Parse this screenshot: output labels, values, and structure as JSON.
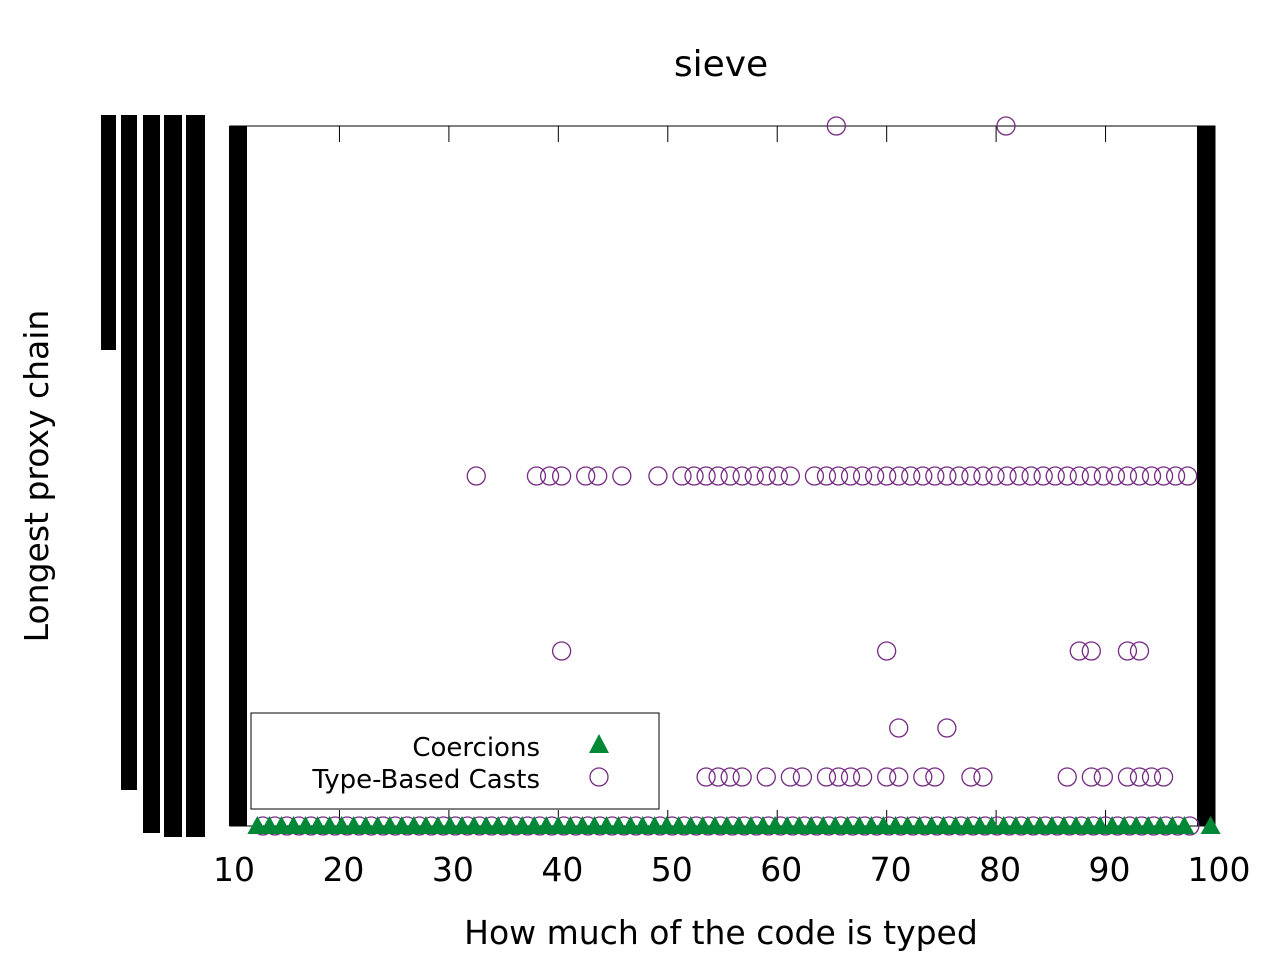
{
  "chart_data": {
    "type": "scatter",
    "title": "sieve",
    "xlabel": "How much of the code is typed",
    "ylabel": "Longest proxy chain",
    "xlim": [
      10,
      100
    ],
    "ylim": [
      0,
      20
    ],
    "x_ticks": [
      "10",
      "20",
      "30",
      "40",
      "50",
      "60",
      "70",
      "80",
      "90",
      "100"
    ],
    "legend_position": "bottom-left",
    "grid": false,
    "series": [
      {
        "name": "Coercions",
        "marker": "filled-triangle",
        "color": "#008837",
        "points": [
          [
            12.5,
            0
          ],
          [
            13.6,
            0
          ],
          [
            14.7,
            0
          ],
          [
            15.8,
            0
          ],
          [
            16.9,
            0
          ],
          [
            18.0,
            0
          ],
          [
            19.1,
            0
          ],
          [
            20.2,
            0
          ],
          [
            21.3,
            0
          ],
          [
            22.4,
            0
          ],
          [
            23.5,
            0
          ],
          [
            24.6,
            0
          ],
          [
            25.7,
            0
          ],
          [
            26.8,
            0
          ],
          [
            27.9,
            0
          ],
          [
            29.0,
            0
          ],
          [
            30.1,
            0
          ],
          [
            31.2,
            0
          ],
          [
            32.3,
            0
          ],
          [
            33.4,
            0
          ],
          [
            34.5,
            0
          ],
          [
            35.6,
            0
          ],
          [
            36.7,
            0
          ],
          [
            37.8,
            0
          ],
          [
            38.9,
            0
          ],
          [
            40.0,
            0
          ],
          [
            41.1,
            0
          ],
          [
            42.2,
            0
          ],
          [
            43.3,
            0
          ],
          [
            44.4,
            0
          ],
          [
            45.5,
            0
          ],
          [
            46.6,
            0
          ],
          [
            47.7,
            0
          ],
          [
            48.8,
            0
          ],
          [
            49.9,
            0
          ],
          [
            51.0,
            0
          ],
          [
            52.1,
            0
          ],
          [
            53.2,
            0
          ],
          [
            54.3,
            0
          ],
          [
            55.4,
            0
          ],
          [
            56.5,
            0
          ],
          [
            57.6,
            0
          ],
          [
            58.7,
            0
          ],
          [
            59.8,
            0
          ],
          [
            60.9,
            0
          ],
          [
            62.0,
            0
          ],
          [
            63.1,
            0
          ],
          [
            64.2,
            0
          ],
          [
            65.3,
            0
          ],
          [
            66.4,
            0
          ],
          [
            67.5,
            0
          ],
          [
            68.6,
            0
          ],
          [
            69.7,
            0
          ],
          [
            70.8,
            0
          ],
          [
            71.9,
            0
          ],
          [
            73.0,
            0
          ],
          [
            74.1,
            0
          ],
          [
            75.2,
            0
          ],
          [
            76.3,
            0
          ],
          [
            77.4,
            0
          ],
          [
            78.5,
            0
          ],
          [
            79.6,
            0
          ],
          [
            80.7,
            0
          ],
          [
            81.8,
            0
          ],
          [
            82.9,
            0
          ],
          [
            84.0,
            0
          ],
          [
            85.1,
            0
          ],
          [
            86.2,
            0
          ],
          [
            87.3,
            0
          ],
          [
            88.4,
            0
          ],
          [
            89.5,
            0
          ],
          [
            90.6,
            0
          ],
          [
            91.7,
            0
          ],
          [
            92.8,
            0
          ],
          [
            93.9,
            0
          ],
          [
            95.0,
            0
          ],
          [
            96.1,
            0
          ],
          [
            97.2,
            0
          ],
          [
            99.6,
            0
          ]
        ]
      },
      {
        "name": "Type-Based Casts",
        "marker": "open-circle",
        "color": "#762a83",
        "points": [
          [
            65.4,
            20
          ],
          [
            80.9,
            20
          ],
          [
            32.5,
            10
          ],
          [
            38.0,
            10
          ],
          [
            39.2,
            10
          ],
          [
            40.3,
            10
          ],
          [
            42.5,
            10
          ],
          [
            43.6,
            10
          ],
          [
            45.8,
            10
          ],
          [
            49.1,
            10
          ],
          [
            51.3,
            10
          ],
          [
            52.4,
            10
          ],
          [
            53.5,
            10
          ],
          [
            54.6,
            10
          ],
          [
            55.7,
            10
          ],
          [
            56.8,
            10
          ],
          [
            57.9,
            10
          ],
          [
            59.0,
            10
          ],
          [
            60.1,
            10
          ],
          [
            61.2,
            10
          ],
          [
            63.4,
            10
          ],
          [
            64.5,
            10
          ],
          [
            65.6,
            10
          ],
          [
            66.7,
            10
          ],
          [
            67.8,
            10
          ],
          [
            68.9,
            10
          ],
          [
            70.0,
            10
          ],
          [
            71.1,
            10
          ],
          [
            72.2,
            10
          ],
          [
            73.3,
            10
          ],
          [
            74.4,
            10
          ],
          [
            75.5,
            10
          ],
          [
            76.6,
            10
          ],
          [
            77.7,
            10
          ],
          [
            78.8,
            10
          ],
          [
            79.9,
            10
          ],
          [
            81.0,
            10
          ],
          [
            82.1,
            10
          ],
          [
            83.2,
            10
          ],
          [
            84.3,
            10
          ],
          [
            85.4,
            10
          ],
          [
            86.5,
            10
          ],
          [
            87.6,
            10
          ],
          [
            88.7,
            10
          ],
          [
            89.8,
            10
          ],
          [
            90.9,
            10
          ],
          [
            92.0,
            10
          ],
          [
            93.1,
            10
          ],
          [
            94.2,
            10
          ],
          [
            95.3,
            10
          ],
          [
            96.4,
            10
          ],
          [
            97.5,
            10
          ],
          [
            40.3,
            5
          ],
          [
            70.0,
            5
          ],
          [
            87.6,
            5
          ],
          [
            88.7,
            5
          ],
          [
            92.0,
            5
          ],
          [
            93.1,
            5
          ],
          [
            71.1,
            2.8
          ],
          [
            75.5,
            2.8
          ],
          [
            53.5,
            1.4
          ],
          [
            54.6,
            1.4
          ],
          [
            55.7,
            1.4
          ],
          [
            56.8,
            1.4
          ],
          [
            59.0,
            1.4
          ],
          [
            61.2,
            1.4
          ],
          [
            62.3,
            1.4
          ],
          [
            64.5,
            1.4
          ],
          [
            65.6,
            1.4
          ],
          [
            66.7,
            1.4
          ],
          [
            67.8,
            1.4
          ],
          [
            70.0,
            1.4
          ],
          [
            71.1,
            1.4
          ],
          [
            73.3,
            1.4
          ],
          [
            74.4,
            1.4
          ],
          [
            77.7,
            1.4
          ],
          [
            78.8,
            1.4
          ],
          [
            86.5,
            1.4
          ],
          [
            88.7,
            1.4
          ],
          [
            89.8,
            1.4
          ],
          [
            92.0,
            1.4
          ],
          [
            93.1,
            1.4
          ],
          [
            94.2,
            1.4
          ],
          [
            95.3,
            1.4
          ],
          [
            13.0,
            0
          ],
          [
            14.1,
            0
          ],
          [
            15.2,
            0
          ],
          [
            16.3,
            0
          ],
          [
            17.4,
            0
          ],
          [
            18.5,
            0
          ],
          [
            19.6,
            0
          ],
          [
            20.7,
            0
          ],
          [
            21.8,
            0
          ],
          [
            22.9,
            0
          ],
          [
            24.0,
            0
          ],
          [
            25.1,
            0
          ],
          [
            26.2,
            0
          ],
          [
            27.3,
            0
          ],
          [
            28.4,
            0
          ],
          [
            29.5,
            0
          ],
          [
            30.6,
            0
          ],
          [
            31.7,
            0
          ],
          [
            32.8,
            0
          ],
          [
            33.9,
            0
          ],
          [
            35.0,
            0
          ],
          [
            36.1,
            0
          ],
          [
            37.2,
            0
          ],
          [
            38.3,
            0
          ],
          [
            39.4,
            0
          ],
          [
            40.5,
            0
          ],
          [
            41.6,
            0
          ],
          [
            42.7,
            0
          ],
          [
            43.8,
            0
          ],
          [
            44.9,
            0
          ],
          [
            46.0,
            0
          ],
          [
            47.1,
            0
          ],
          [
            48.2,
            0
          ],
          [
            49.3,
            0
          ],
          [
            50.4,
            0
          ],
          [
            51.5,
            0
          ],
          [
            52.6,
            0
          ],
          [
            53.7,
            0
          ],
          [
            54.8,
            0
          ],
          [
            55.9,
            0
          ],
          [
            57.0,
            0
          ],
          [
            58.1,
            0
          ],
          [
            59.2,
            0
          ],
          [
            60.3,
            0
          ],
          [
            61.4,
            0
          ],
          [
            62.5,
            0
          ],
          [
            63.6,
            0
          ],
          [
            64.7,
            0
          ],
          [
            65.8,
            0
          ],
          [
            66.9,
            0
          ],
          [
            68.0,
            0
          ],
          [
            69.1,
            0
          ],
          [
            70.2,
            0
          ],
          [
            71.3,
            0
          ],
          [
            72.4,
            0
          ],
          [
            73.5,
            0
          ],
          [
            74.6,
            0
          ],
          [
            75.7,
            0
          ],
          [
            76.8,
            0
          ],
          [
            77.9,
            0
          ],
          [
            79.0,
            0
          ],
          [
            80.1,
            0
          ],
          [
            81.2,
            0
          ],
          [
            82.3,
            0
          ],
          [
            83.4,
            0
          ],
          [
            84.5,
            0
          ],
          [
            85.6,
            0
          ],
          [
            86.7,
            0
          ],
          [
            87.8,
            0
          ],
          [
            88.9,
            0
          ],
          [
            90.0,
            0
          ],
          [
            91.1,
            0
          ],
          [
            92.2,
            0
          ],
          [
            93.3,
            0
          ],
          [
            94.4,
            0
          ],
          [
            95.5,
            0
          ],
          [
            96.6,
            0
          ],
          [
            97.7,
            0
          ]
        ]
      }
    ]
  }
}
